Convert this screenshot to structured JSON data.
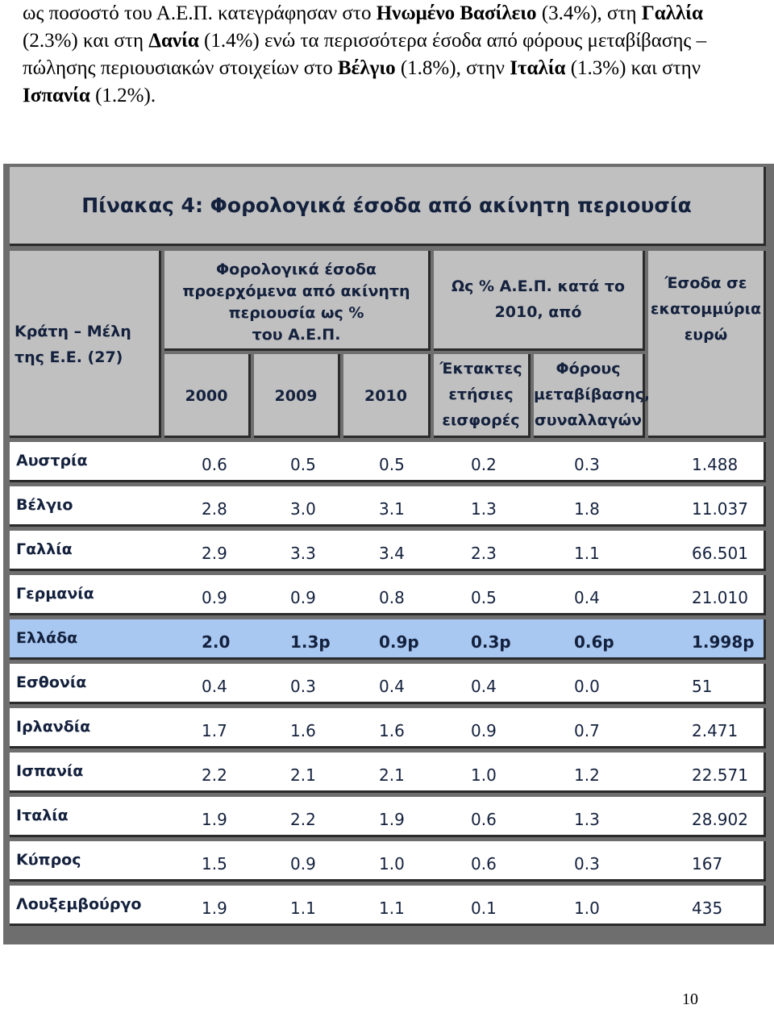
{
  "paragraph": {
    "line1_a": "ως ποσοστό του Α.Ε.Π. κατεγράφησαν στο ",
    "line1_b": "Ηνωμένο Βασίλειο",
    "line1_c": " (3.4%), στη ",
    "line1_d": "Γαλλία",
    "line2_a": "(2.3%) και στη ",
    "line2_b": "Δανία",
    "line2_c": " (1.4%) ενώ τα περισσότερα έσοδα από φόρους μεταβίβασης –",
    "line3_a": "πώλησης περιουσιακών στοιχείων στο ",
    "line3_b": "Βέλγιο",
    "line3_c": " (1.8%), στην ",
    "line3_d": "Ιταλία",
    "line3_e": " (1.3%) και στην",
    "line4_a": "Ισπανία",
    "line4_b": " (1.2%)."
  },
  "table": {
    "title": "Πίνακας 4: Φορολογικά έσοδα από ακίνητη περιουσία",
    "col_states": [
      "Κράτη – Μέλη",
      "της Ε.Ε. (27)"
    ],
    "col_gdp": [
      "Φορολογικά έσοδα",
      "προερχόμενα από ακίνητη",
      "περιουσία ως %",
      "του Α.Ε.Π."
    ],
    "col_2010": [
      "Ως % Α.Ε.Π. κατά το",
      "2010, από"
    ],
    "col_euro": [
      "Έσοδα σε",
      "εκατομμύρια",
      "ευρώ"
    ],
    "years": [
      "2000",
      "2009",
      "2010"
    ],
    "col_extra": [
      "Έκτακτες",
      "ετήσιες",
      "εισφορές"
    ],
    "col_transfer": [
      "Φόρους",
      "μεταβίβασης,",
      "συναλλαγών"
    ],
    "rows": [
      {
        "country": "Αυστρία",
        "v": [
          "0.6",
          "0.5",
          "0.5",
          "0.2",
          "0.3",
          "1.488"
        ]
      },
      {
        "country": "Βέλγιο",
        "v": [
          "2.8",
          "3.0",
          "3.1",
          "1.3",
          "1.8",
          "11.037"
        ]
      },
      {
        "country": "Γαλλία",
        "v": [
          "2.9",
          "3.3",
          "3.4",
          "2.3",
          "1.1",
          "66.501"
        ]
      },
      {
        "country": "Γερμανία",
        "v": [
          "0.9",
          "0.9",
          "0.8",
          "0.5",
          "0.4",
          "21.010"
        ]
      },
      {
        "country": "Ελλάδα",
        "v": [
          "2.0",
          "1.3p",
          "0.9p",
          "0.3p",
          "0.6p",
          "1.998p"
        ]
      },
      {
        "country": "Εσθονία",
        "v": [
          "0.4",
          "0.3",
          "0.4",
          "0.4",
          "0.0",
          "51"
        ]
      },
      {
        "country": "Ιρλανδία",
        "v": [
          "1.7",
          "1.6",
          "1.6",
          "0.9",
          "0.7",
          "2.471"
        ]
      },
      {
        "country": "Ισπανία",
        "v": [
          "2.2",
          "2.1",
          "2.1",
          "1.0",
          "1.2",
          "22.571"
        ]
      },
      {
        "country": "Ιταλία",
        "v": [
          "1.9",
          "2.2",
          "1.9",
          "0.6",
          "1.3",
          "28.902"
        ]
      },
      {
        "country": "Κύπρος",
        "v": [
          "1.5",
          "0.9",
          "1.0",
          "0.6",
          "0.3",
          "167"
        ]
      },
      {
        "country": "Λουξεμβούργο",
        "v": [
          "1.9",
          "1.1",
          "1.1",
          "0.1",
          "1.0",
          "435"
        ]
      }
    ]
  },
  "page_number": "10"
}
